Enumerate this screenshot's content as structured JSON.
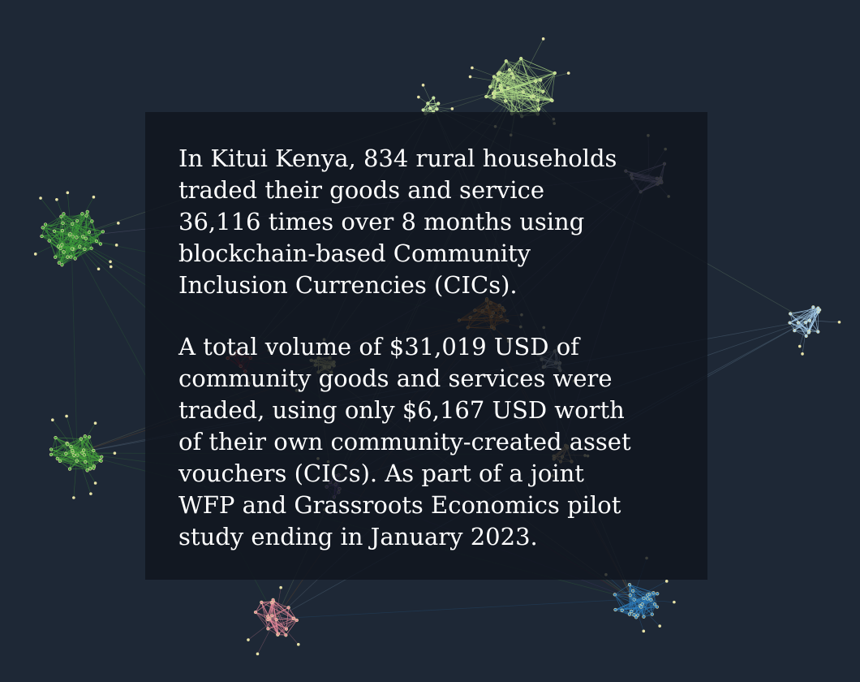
{
  "panel": {
    "paragraph_1": "In Kitui Kenya, 834 rural households\ntraded their goods and service\n36,116 times over 8 months using\nblockchain-based Community\nInclusion Currencies (CICs).",
    "paragraph_2": "A total volume of $31,019 USD of\ncommunity goods and services were\ntraded, using only $6,167 USD worth\nof their own community-created asset\nvouchers (CICs). As part of a joint\nWFP and Grassroots Economics pilot\nstudy ending in January 2023."
  },
  "colors": {
    "background": "#1e2836",
    "panel": "#0f141e",
    "text": "#ffffff",
    "node_outline": "#e8e3a8"
  },
  "network_clusters": [
    {
      "name": "cluster-light-green-top",
      "color": "#b5e08a"
    },
    {
      "name": "cluster-small-green-top",
      "color": "#b9e6a0"
    },
    {
      "name": "cluster-lavender",
      "color": "#b6a6d6"
    },
    {
      "name": "cluster-green-left",
      "color": "#3fa33a"
    },
    {
      "name": "cluster-light-blue-right",
      "color": "#a9d2f0"
    },
    {
      "name": "cluster-orange-center",
      "color": "#d67a1a"
    },
    {
      "name": "cluster-red",
      "color": "#b61e26"
    },
    {
      "name": "cluster-olive",
      "color": "#c9c57e"
    },
    {
      "name": "cluster-grey-blue",
      "color": "#a8b8c6"
    },
    {
      "name": "cluster-green-lower-left",
      "color": "#48a83c"
    },
    {
      "name": "cluster-purple",
      "color": "#6a4a9c"
    },
    {
      "name": "cluster-tan",
      "color": "#c8a56e"
    },
    {
      "name": "cluster-blue-bottom",
      "color": "#2f7fc0"
    },
    {
      "name": "cluster-pink-bottom",
      "color": "#e5899a"
    }
  ]
}
